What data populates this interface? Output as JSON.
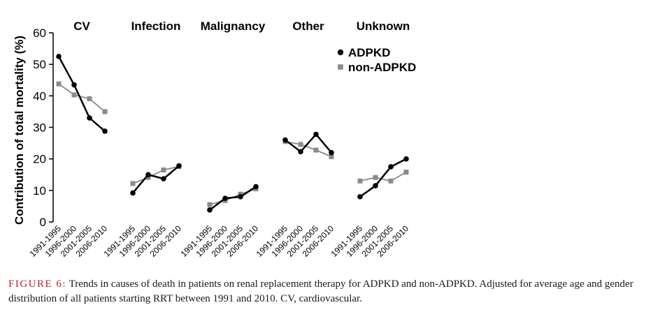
{
  "caption": {
    "label": "FIGURE 6:",
    "text": "Trends in causes of death in patients on renal replacement therapy for ADPKD and non-ADPKD. Adjusted for average age and gender distribution of all patients starting RRT between 1991 and 2010. CV, cardiovascular."
  },
  "chart_data": {
    "type": "line",
    "ylabel": "Contribution of total mortality (%)",
    "ylim": [
      0,
      60
    ],
    "yticks": [
      0,
      10,
      20,
      30,
      40,
      50,
      60
    ],
    "categories": [
      "1991-1995",
      "1996-2000",
      "2001-2005",
      "2006-2010"
    ],
    "legend_position": "top-right",
    "grid": false,
    "series_styles": [
      {
        "name": "ADPKD",
        "color": "#000000",
        "marker": "circle"
      },
      {
        "name": "non-ADPKD",
        "color": "#8a8a8a",
        "marker": "square"
      }
    ],
    "panels": [
      {
        "title": "CV",
        "series": [
          {
            "name": "ADPKD",
            "values": [
              52.5,
              43.5,
              33,
              28.8
            ]
          },
          {
            "name": "non-ADPKD",
            "values": [
              43.8,
              40.3,
              39.1,
              35
            ]
          }
        ]
      },
      {
        "title": "Infection",
        "series": [
          {
            "name": "ADPKD",
            "values": [
              9.2,
              15,
              13.7,
              17.8
            ]
          },
          {
            "name": "non-ADPKD",
            "values": [
              12.2,
              14.1,
              16.5,
              17.6
            ]
          }
        ]
      },
      {
        "title": "Malignancy",
        "series": [
          {
            "name": "ADPKD",
            "values": [
              3.8,
              7.5,
              8,
              11.2
            ]
          },
          {
            "name": "non-ADPKD",
            "values": [
              5.5,
              6.8,
              8.8,
              10.5
            ]
          }
        ]
      },
      {
        "title": "Other",
        "series": [
          {
            "name": "ADPKD",
            "values": [
              26,
              22.3,
              27.8,
              22
            ]
          },
          {
            "name": "non-ADPKD",
            "values": [
              25.5,
              24.6,
              22.8,
              20.7
            ]
          }
        ]
      },
      {
        "title": "Unknown",
        "series": [
          {
            "name": "ADPKD",
            "values": [
              8,
              11.5,
              17.5,
              20
            ]
          },
          {
            "name": "non-ADPKD",
            "values": [
              13,
              14.1,
              13,
              15.8
            ]
          }
        ]
      }
    ]
  }
}
